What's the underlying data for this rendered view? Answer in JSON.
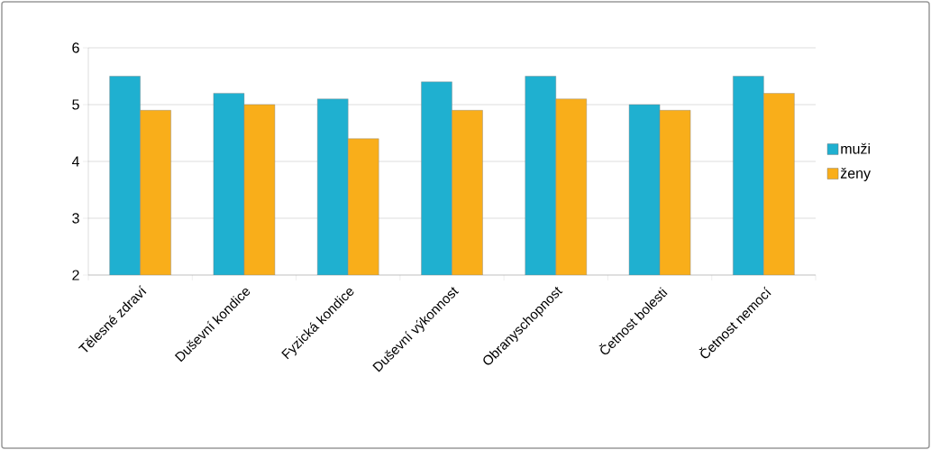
{
  "chart_data": {
    "type": "bar",
    "categories": [
      "Tělesné zdraví",
      "Duševní kondice",
      "Fyzická kondice",
      "Duševní výkonnost",
      "Obranyschopnost",
      "Četnost bolesti",
      "Četnost nemocí"
    ],
    "series": [
      {
        "name": "muži",
        "color": "#1fb0d0",
        "values": [
          5.5,
          5.2,
          5.1,
          5.4,
          5.5,
          5.0,
          5.5
        ]
      },
      {
        "name": "ženy",
        "color": "#f9ae1a",
        "values": [
          4.9,
          5.0,
          4.4,
          4.9,
          5.1,
          4.9,
          5.2
        ]
      }
    ],
    "ylim": [
      2,
      6
    ],
    "yticks": [
      2,
      3,
      4,
      5,
      6
    ],
    "grid": "y",
    "legend": "right"
  }
}
